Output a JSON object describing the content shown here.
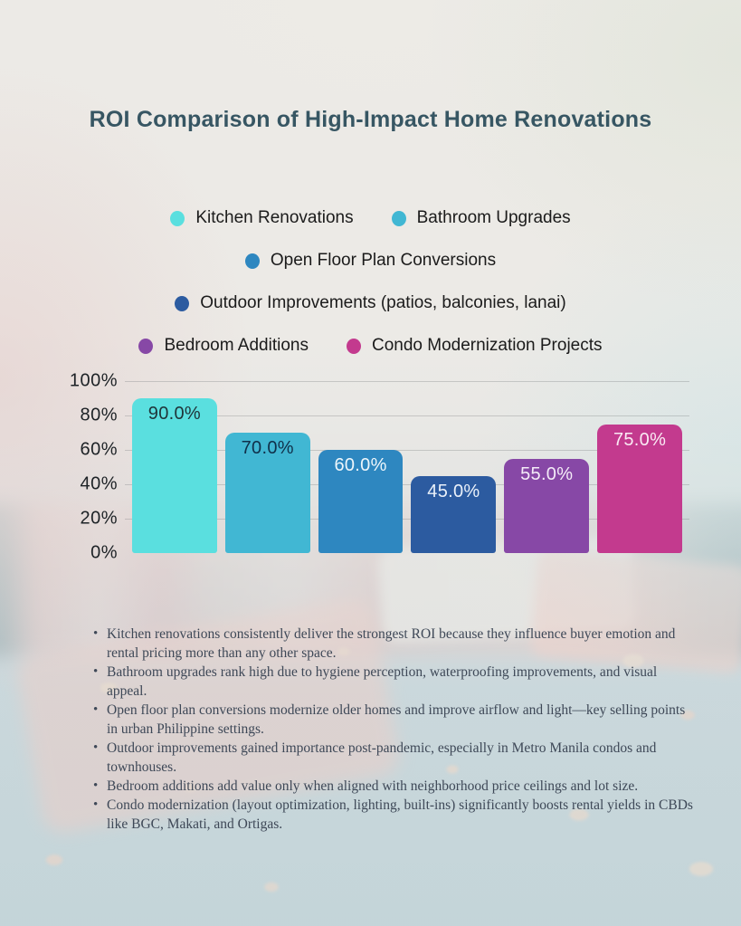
{
  "chart_data": {
    "type": "bar",
    "title": "ROI Comparison of High-Impact Home Renovations",
    "categories": [
      "Kitchen Renovations",
      "Bathroom Upgrades",
      "Open Floor Plan Conversions",
      "Outdoor Improvements (patios, balconies, lanai)",
      "Bedroom Additions",
      "Condo Modernization Projects"
    ],
    "values": [
      90.0,
      70.0,
      60.0,
      45.0,
      55.0,
      75.0
    ],
    "value_labels": [
      "90.0%",
      "70.0%",
      "60.0%",
      "45.0%",
      "55.0%",
      "75.0%"
    ],
    "colors": [
      "#5adfdf",
      "#41b7d3",
      "#2e87c0",
      "#2c5ba0",
      "#8748a6",
      "#c33a8e"
    ],
    "value_label_colors": [
      "#1f3338",
      "#10304a",
      "#eef6fb",
      "#eaf1fa",
      "#f4ecf8",
      "#faeaf4"
    ],
    "xlabel": "",
    "ylabel": "",
    "ylim": [
      0,
      100
    ],
    "ytick_labels": [
      "100%",
      "80%",
      "60%",
      "40%",
      "20%",
      "0%"
    ],
    "grid": true,
    "legend_position": "top-center",
    "annotations": [
      "Kitchen renovations consistently deliver the strongest ROI because they influence buyer emotion and rental pricing more than any other space.",
      "Bathroom upgrades rank high due to hygiene perception, waterproofing improvements, and visual appeal.",
      "Open floor plan conversions modernize older homes and improve airflow and light—key selling points in urban Philippine settings.",
      "Outdoor improvements gained importance post-pandemic, especially in Metro Manila condos and townhouses.",
      "Bedroom additions add value only when aligned with neighborhood price ceilings and lot size.",
      "Condo modernization (layout optimization, lighting, built-ins) significantly boosts rental yields in CBDs like BGC, Makati, and Ortigas."
    ]
  }
}
